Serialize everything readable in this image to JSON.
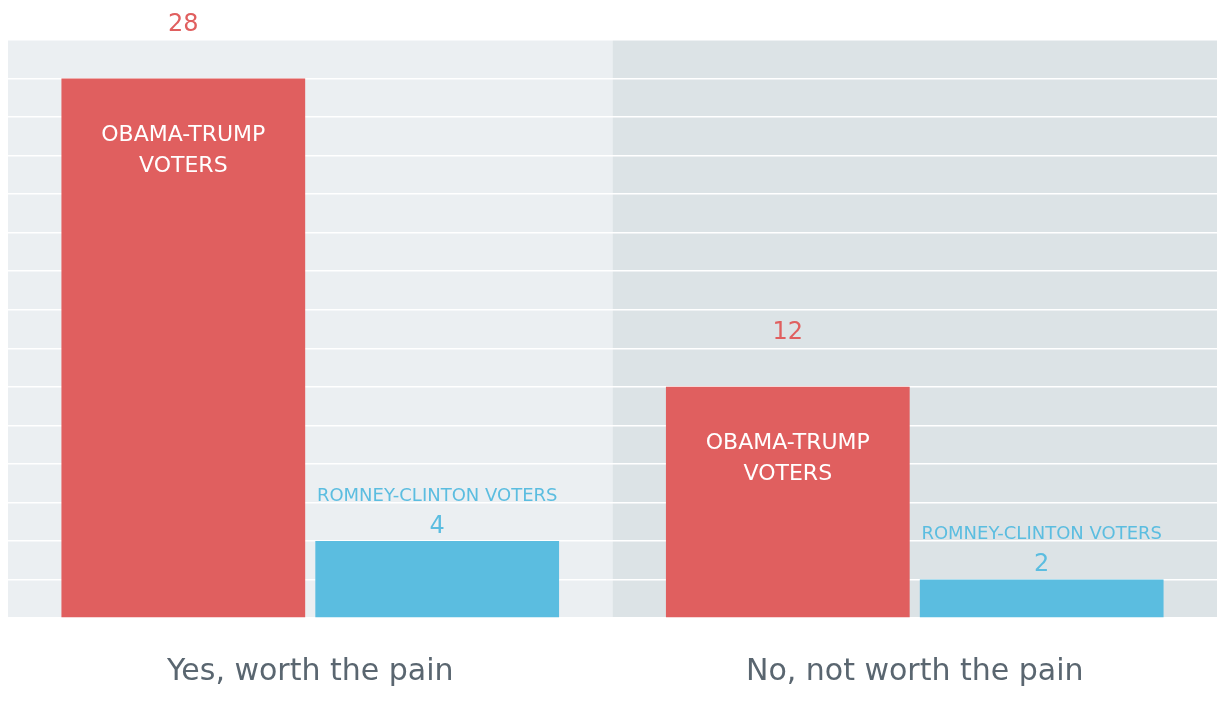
{
  "chart_data": {
    "type": "bar",
    "categories": [
      "Yes, worth the pain",
      "No, not worth the pain"
    ],
    "series": [
      {
        "name": "OBAMA-TRUMP VOTERS",
        "color": "#e05f5f",
        "values": [
          28,
          12
        ]
      },
      {
        "name": "ROMNEY-CLINTON VOTERS",
        "color": "#5bbde0",
        "values": [
          4,
          2
        ]
      }
    ],
    "ylim": [
      0,
      30
    ],
    "yticks": [
      {
        "value": 0,
        "label": null
      },
      {
        "value": 2,
        "label": null
      },
      {
        "value": 4,
        "label": null
      },
      {
        "value": 6,
        "label": null
      },
      {
        "value": 8,
        "label": null
      },
      {
        "value": 10,
        "label": null
      },
      {
        "value": 12,
        "label": null
      },
      {
        "value": 14,
        "label": null
      },
      {
        "value": 16,
        "label": null
      },
      {
        "value": 18,
        "label": null
      },
      {
        "value": 20,
        "label": null
      },
      {
        "value": 22,
        "label": null
      },
      {
        "value": 24,
        "label": null
      },
      {
        "value": 26,
        "label": null
      },
      {
        "value": 28,
        "label": null
      },
      {
        "value": 30,
        "label": null
      }
    ],
    "bands": [
      {
        "axis": "x",
        "from": "Yes, worth the pain",
        "to": "Yes, worth the pain",
        "color": "#ebeff2"
      },
      {
        "axis": "x",
        "from": "No, not worth the pain",
        "to": "No, not worth the pain",
        "color": "#dce3e6"
      }
    ],
    "grid": "y",
    "tick_labels": "x",
    "legend": false,
    "data_labels": true
  }
}
